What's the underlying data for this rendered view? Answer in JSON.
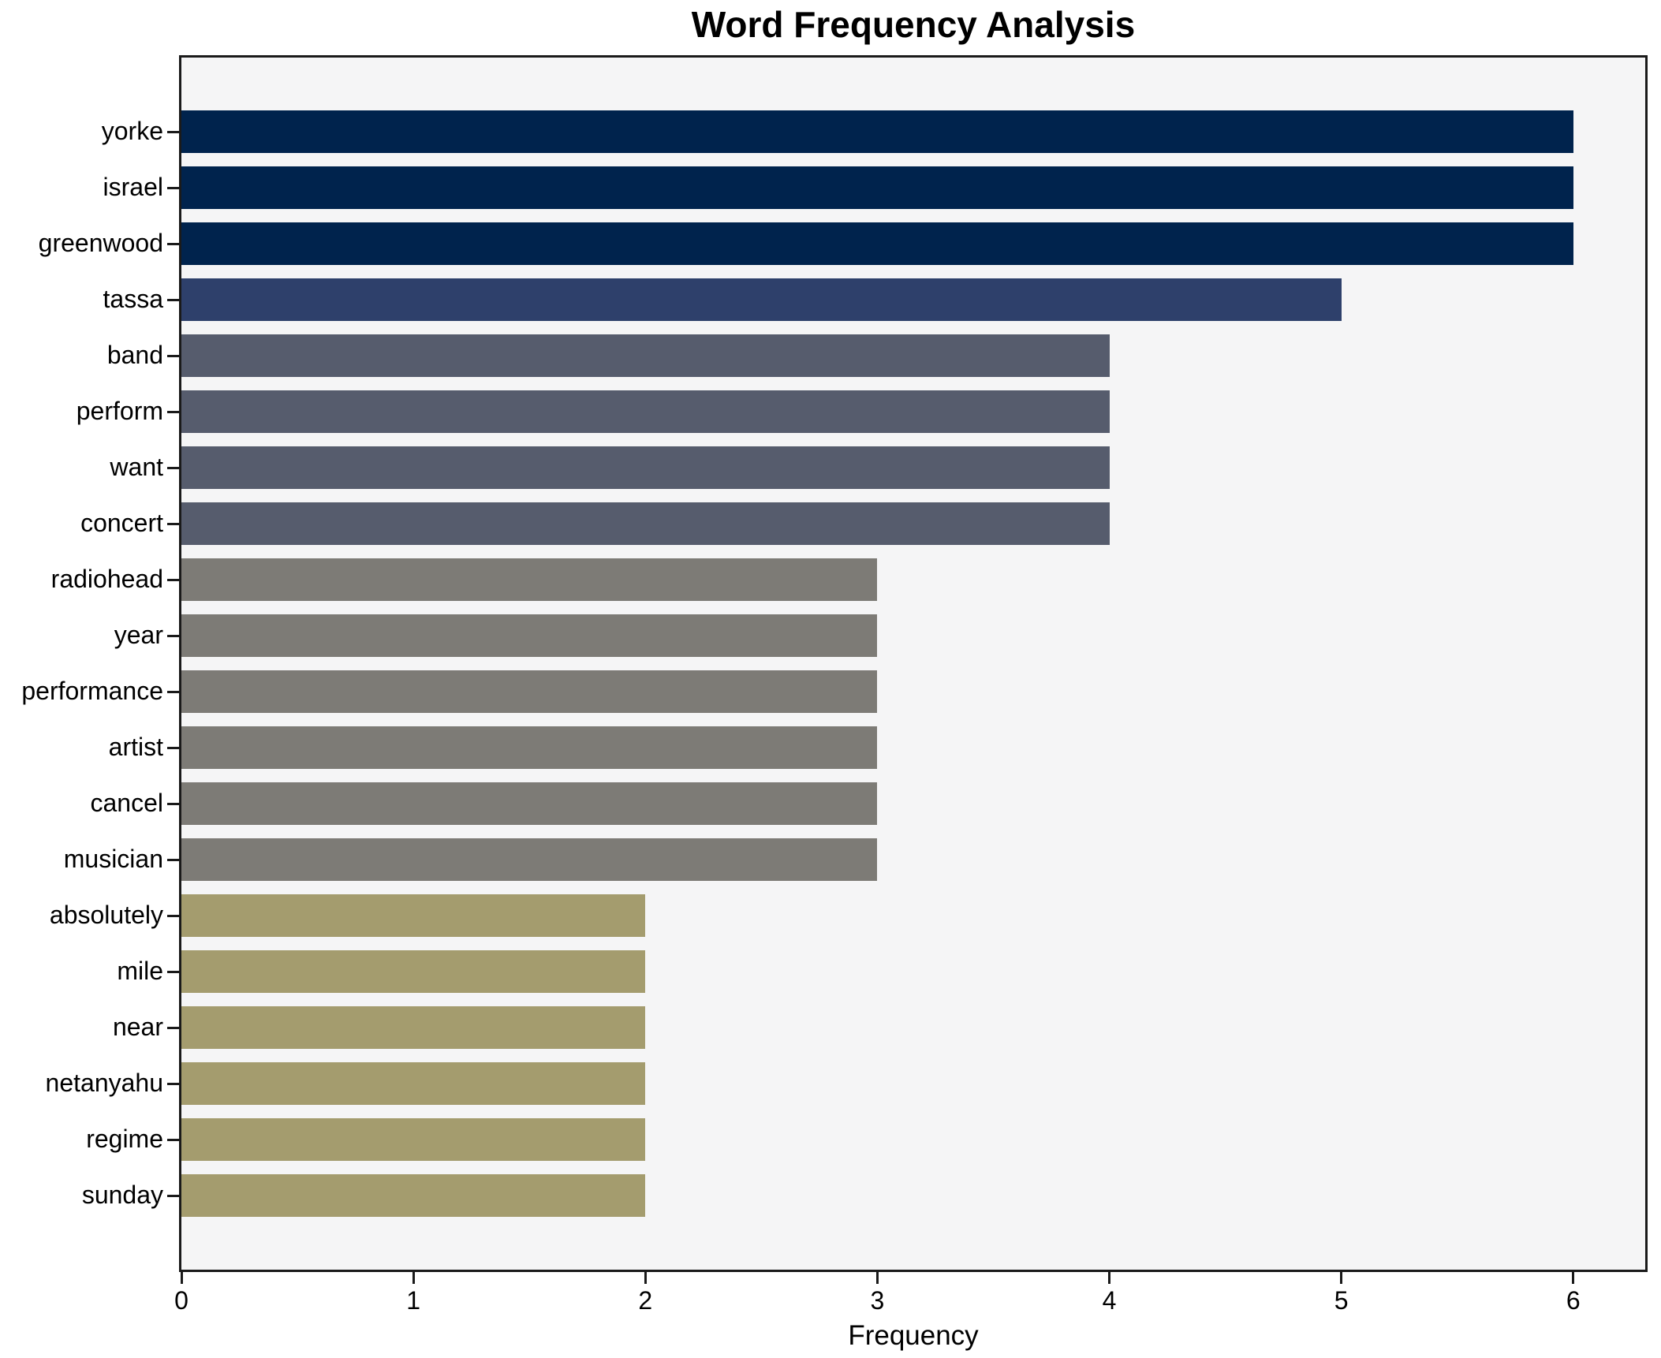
{
  "figure": {
    "background": "#ffffff",
    "plot_background": "#f5f5f6",
    "spine_color": "#1a1a1a",
    "text_color": "#000000"
  },
  "chart_data": {
    "type": "bar",
    "orientation": "horizontal",
    "title": "Word Frequency Analysis",
    "xlabel": "Frequency",
    "ylabel": "",
    "categories": [
      "yorke",
      "israel",
      "greenwood",
      "tassa",
      "band",
      "perform",
      "want",
      "concert",
      "radiohead",
      "year",
      "performance",
      "artist",
      "cancel",
      "musician",
      "absolutely",
      "mile",
      "near",
      "netanyahu",
      "regime",
      "sunday"
    ],
    "values": [
      6,
      6,
      6,
      5,
      4,
      4,
      4,
      4,
      3,
      3,
      3,
      3,
      3,
      3,
      2,
      2,
      2,
      2,
      2,
      2
    ],
    "xlim": [
      0,
      6.31
    ],
    "xticks": [
      0,
      1,
      2,
      3,
      4,
      5,
      6
    ],
    "grid": false,
    "legend": null,
    "bar_colors_by_value": {
      "6": "#00234d",
      "5": "#2e406b",
      "4": "#565c6d",
      "3": "#7d7b76",
      "2": "#a49c6e"
    }
  }
}
